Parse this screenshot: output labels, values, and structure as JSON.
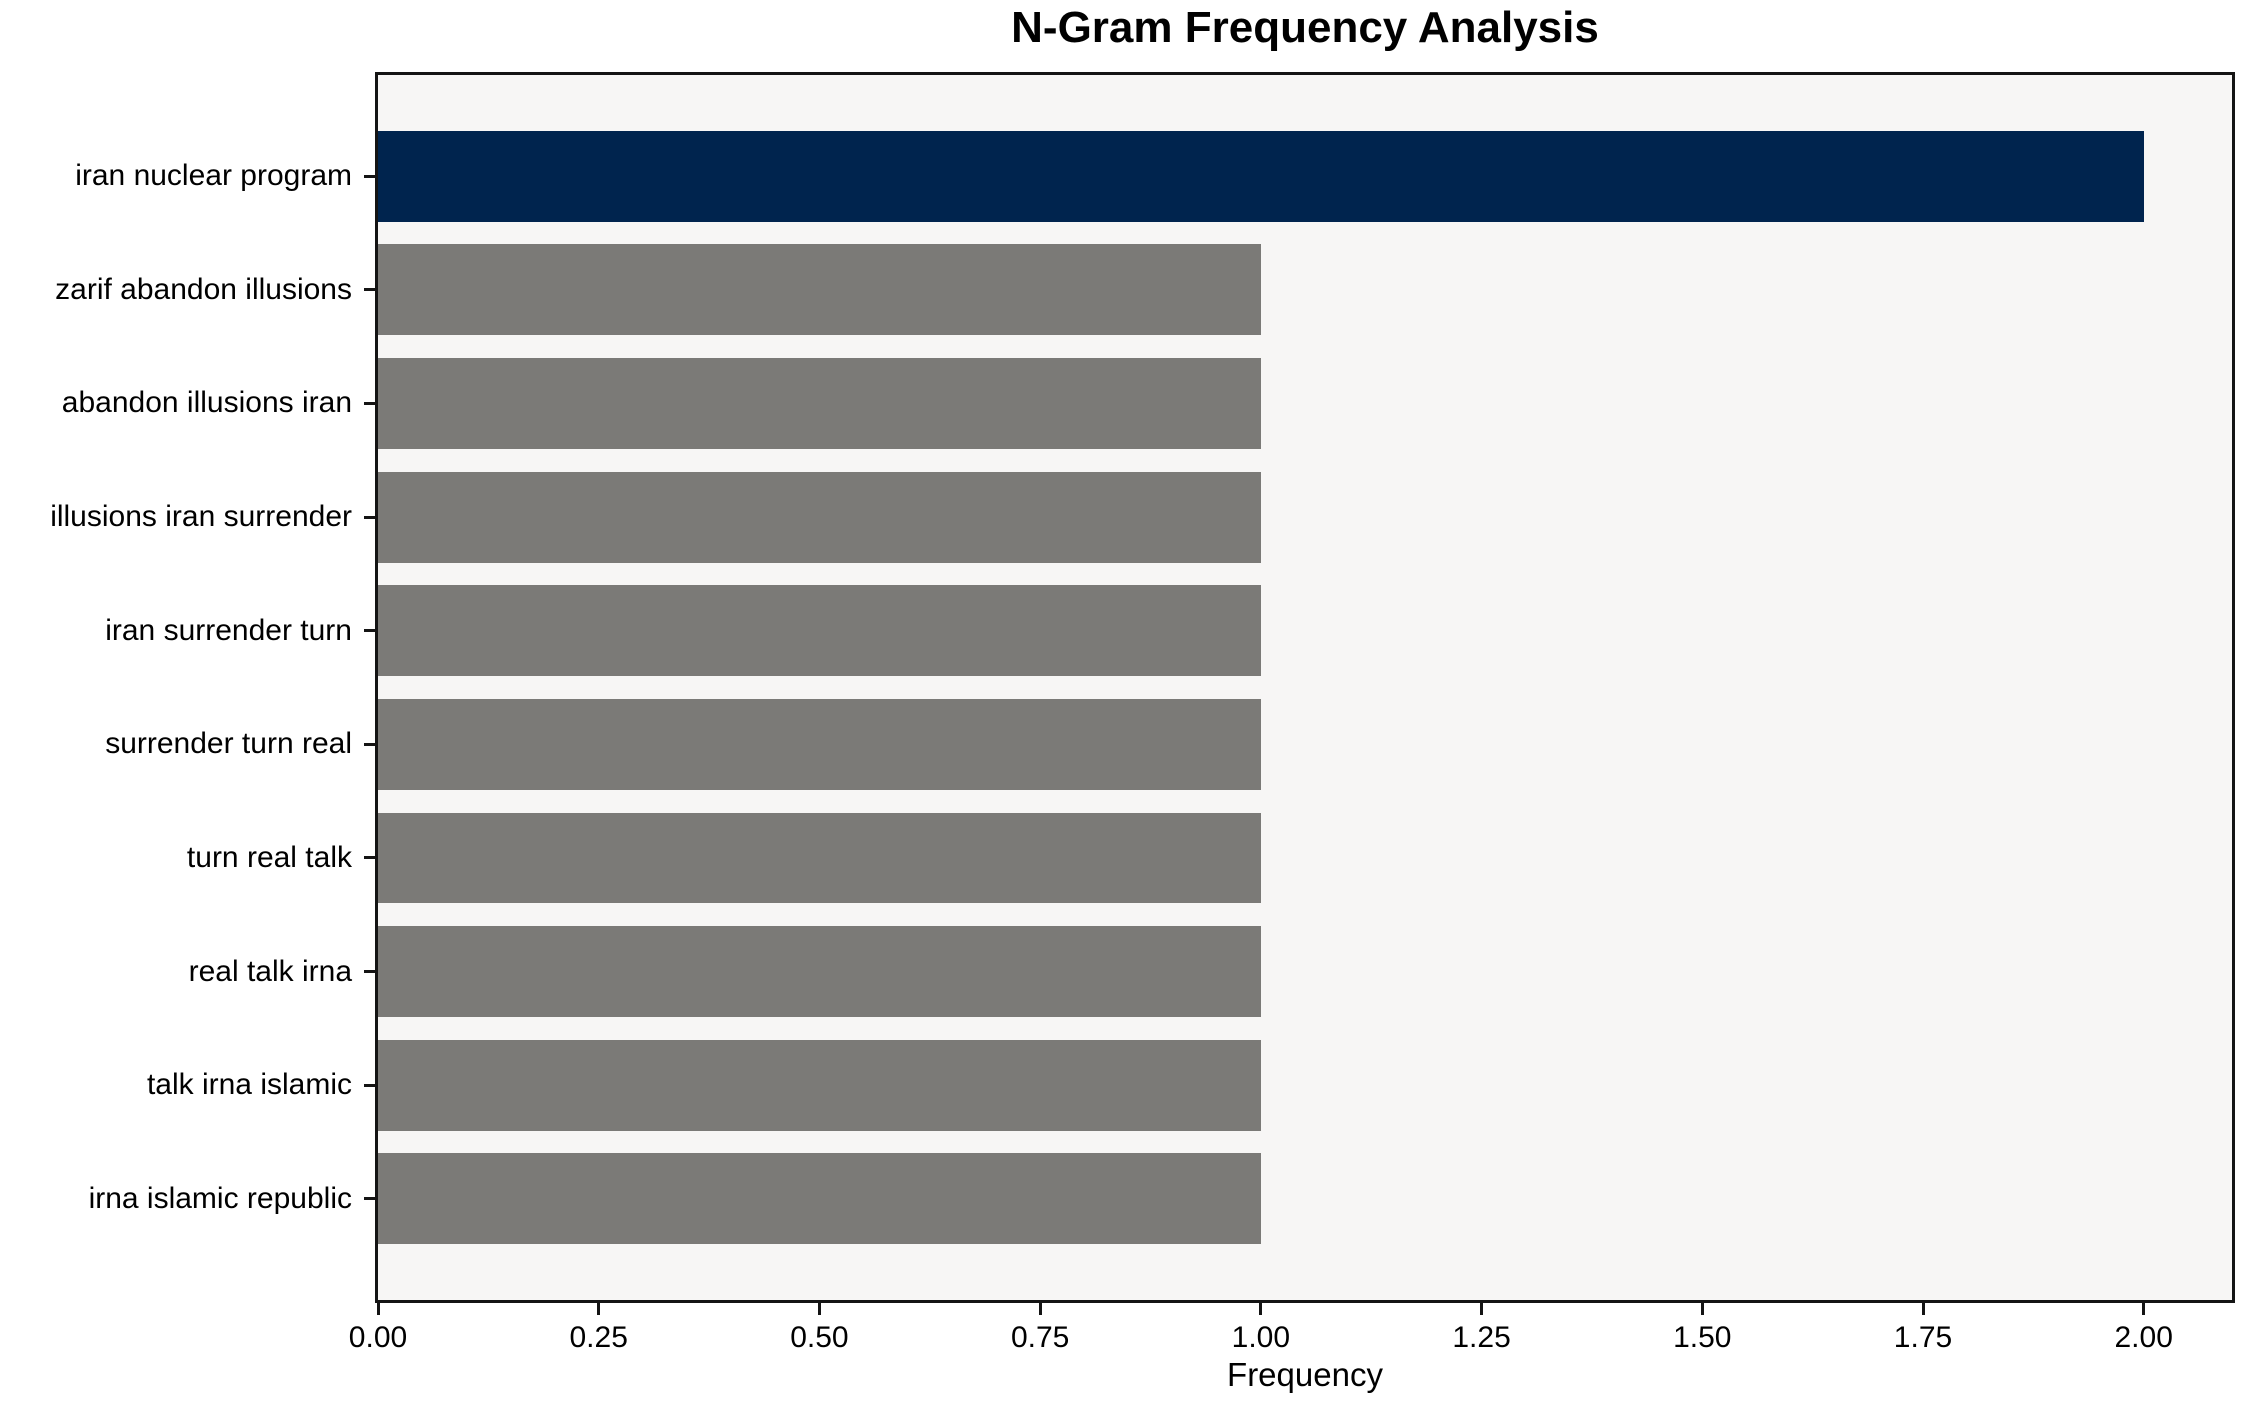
{
  "chart_data": {
    "type": "bar",
    "orientation": "horizontal",
    "title": "N-Gram Frequency Analysis",
    "xlabel": "Frequency",
    "ylabel": "",
    "categories": [
      "iran nuclear program",
      "zarif abandon illusions",
      "abandon illusions iran",
      "illusions iran surrender",
      "iran surrender turn",
      "surrender turn real",
      "turn real talk",
      "real talk irna",
      "talk irna islamic",
      "irna islamic republic"
    ],
    "values": [
      2,
      1,
      1,
      1,
      1,
      1,
      1,
      1,
      1,
      1
    ],
    "bar_colors": [
      "#00244e",
      "#7b7a77",
      "#7b7a77",
      "#7b7a77",
      "#7b7a77",
      "#7b7a77",
      "#7b7a77",
      "#7b7a77",
      "#7b7a77",
      "#7b7a77"
    ],
    "xlim": [
      0,
      2.1
    ],
    "xticks": [
      "0.00",
      "0.25",
      "0.50",
      "0.75",
      "1.00",
      "1.25",
      "1.50",
      "1.75",
      "2.00"
    ],
    "xtick_values": [
      0,
      0.25,
      0.5,
      0.75,
      1.0,
      1.25,
      1.5,
      1.75,
      2.0
    ],
    "grid": false,
    "legend": null,
    "colors": {
      "highlight_bar": "#00244e",
      "default_bar": "#7b7a77",
      "plot_background": "#f7f6f5",
      "figure_background": "#ffffff",
      "spine": "#141414",
      "text": "#000000"
    }
  }
}
